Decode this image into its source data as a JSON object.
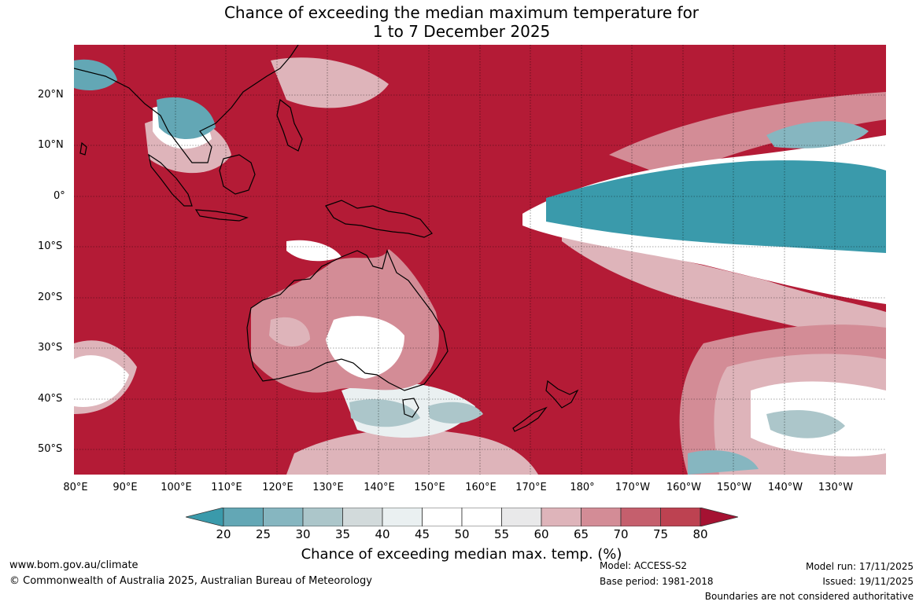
{
  "title": {
    "line1": "Chance of exceeding the median maximum temperature for",
    "line2": "1 to 7 December 2025"
  },
  "latitude_labels": [
    "20°N",
    "10°N",
    "0°",
    "10°S",
    "20°S",
    "30°S",
    "40°S",
    "50°S"
  ],
  "longitude_labels": [
    "80°E",
    "90°E",
    "100°E",
    "110°E",
    "120°E",
    "130°E",
    "140°E",
    "150°E",
    "160°E",
    "170°E",
    "180°",
    "170°W",
    "160°W",
    "150°W",
    "140°W",
    "130°W"
  ],
  "colorbar": {
    "ticks": [
      "20",
      "25",
      "30",
      "35",
      "40",
      "45",
      "50",
      "55",
      "60",
      "65",
      "70",
      "75",
      "80"
    ],
    "colors": [
      "#3a9aab",
      "#63a7b5",
      "#86b6c0",
      "#acc6ca",
      "#d2dadb",
      "#eaf0f1",
      "#ffffff",
      "#ffffff",
      "#e9e9ea",
      "#deb4ba",
      "#d38c96",
      "#c55f6d",
      "#bd4251",
      "#a51232"
    ],
    "label": "Chance of exceeding median max. temp. (%)"
  },
  "footer": {
    "website": "www.bom.gov.au/climate",
    "copyright": "© Commonwealth of Australia 2025, Australian Bureau of Meteorology",
    "model": "Model: ACCESS-S2",
    "base_period": "Base period: 1981-2018",
    "model_run": "Model run: 17/11/2025",
    "issued": "Issued: 19/11/2025",
    "disclaimer": "Boundaries are not considered authoritative"
  }
}
